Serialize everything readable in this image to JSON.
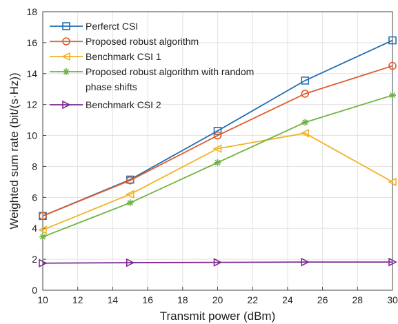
{
  "chart_data": {
    "type": "line",
    "xlabel": "Transmit power (dBm)",
    "ylabel": "Weighted sum rate (bit/(s·Hz))",
    "xlim": [
      10,
      30
    ],
    "ylim": [
      0,
      18
    ],
    "xticks": [
      10,
      12,
      14,
      16,
      18,
      20,
      22,
      24,
      26,
      28,
      30
    ],
    "yticks": [
      0,
      2,
      4,
      6,
      8,
      10,
      12,
      14,
      16,
      18
    ],
    "grid": true,
    "legend_placement": "top-left",
    "x": [
      10,
      15,
      20,
      25,
      30
    ],
    "series": [
      {
        "name": "Perferct CSI",
        "values": [
          4.8,
          7.15,
          10.3,
          13.55,
          16.15
        ],
        "color": "#1f6fb4",
        "marker": "square"
      },
      {
        "name": "Proposed robust algorithm",
        "values": [
          4.8,
          7.1,
          10.0,
          12.7,
          14.5
        ],
        "color": "#e05a2b",
        "marker": "circle"
      },
      {
        "name": "Benchmark CSI 1",
        "values": [
          3.9,
          6.2,
          9.15,
          10.15,
          7.0
        ],
        "color": "#f0b323",
        "marker": "triangle-left"
      },
      {
        "name": "Proposed robust algorithm with random phase shifts",
        "values": [
          3.45,
          5.65,
          8.25,
          10.85,
          12.6
        ],
        "color": "#6db33f",
        "marker": "star"
      },
      {
        "name": "Benchmark CSI 2",
        "values": [
          1.75,
          1.78,
          1.8,
          1.82,
          1.82
        ],
        "color": "#7b2c8f",
        "marker": "triangle-right"
      }
    ]
  }
}
